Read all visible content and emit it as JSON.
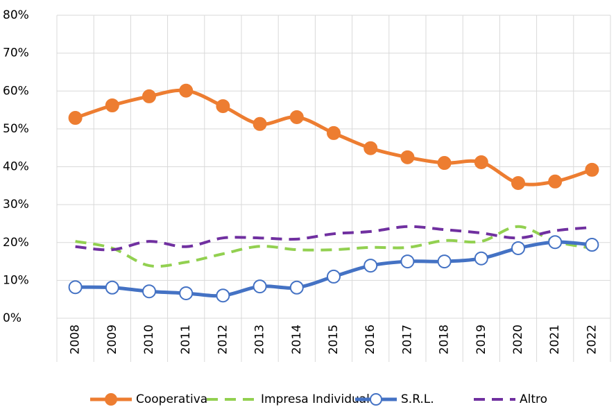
{
  "chart_data": {
    "type": "line",
    "categories": [
      "2008",
      "2009",
      "2010",
      "2011",
      "2012",
      "2013",
      "2014",
      "2015",
      "2016",
      "2017",
      "2018",
      "2019",
      "2020",
      "2021",
      "2022"
    ],
    "series": [
      {
        "name": "Cooperativa",
        "color": "#ed7d31",
        "style": "solid",
        "marker": "filled",
        "values": [
          52.9,
          56.2,
          58.6,
          60.1,
          56,
          51.3,
          53.1,
          48.9,
          44.9,
          42.5,
          41,
          41.2,
          35.7,
          36.1,
          39.2
        ]
      },
      {
        "name": "Impresa Individuale",
        "color": "#92d050",
        "style": "dashed",
        "marker": "none",
        "values": [
          20.3,
          18.5,
          13.9,
          14.8,
          17,
          19,
          18.1,
          18.1,
          18.7,
          18.7,
          20.5,
          20.3,
          24.2,
          20.3,
          18.5
        ]
      },
      {
        "name": "S.R.L.",
        "color": "#4472c4",
        "style": "solid",
        "marker": "hollow",
        "values": [
          8.2,
          8.1,
          7.1,
          6.6,
          6,
          8.4,
          8.1,
          11,
          13.9,
          15,
          15,
          15.8,
          18.5,
          20.1,
          19.4
        ]
      },
      {
        "name": "Altro",
        "color": "#7030a0",
        "style": "dashed",
        "marker": "none",
        "values": [
          18.9,
          18.1,
          20.3,
          18.9,
          21.2,
          21.2,
          20.9,
          22.3,
          22.9,
          24.2,
          23.4,
          22.5,
          21.2,
          23.1,
          24
        ]
      }
    ],
    "ylim": [
      0,
      80
    ],
    "yticks": [
      {
        "value": 0,
        "label": "0%"
      },
      {
        "value": 10,
        "label": "10%"
      },
      {
        "value": 20,
        "label": "20%"
      },
      {
        "value": 30,
        "label": "30%"
      },
      {
        "value": 40,
        "label": "40%"
      },
      {
        "value": 50,
        "label": "50%"
      },
      {
        "value": 60,
        "label": "60%"
      },
      {
        "value": 70,
        "label": "70%"
      },
      {
        "value": 80,
        "label": "80%"
      }
    ],
    "grid": true,
    "legend": "bottom"
  }
}
